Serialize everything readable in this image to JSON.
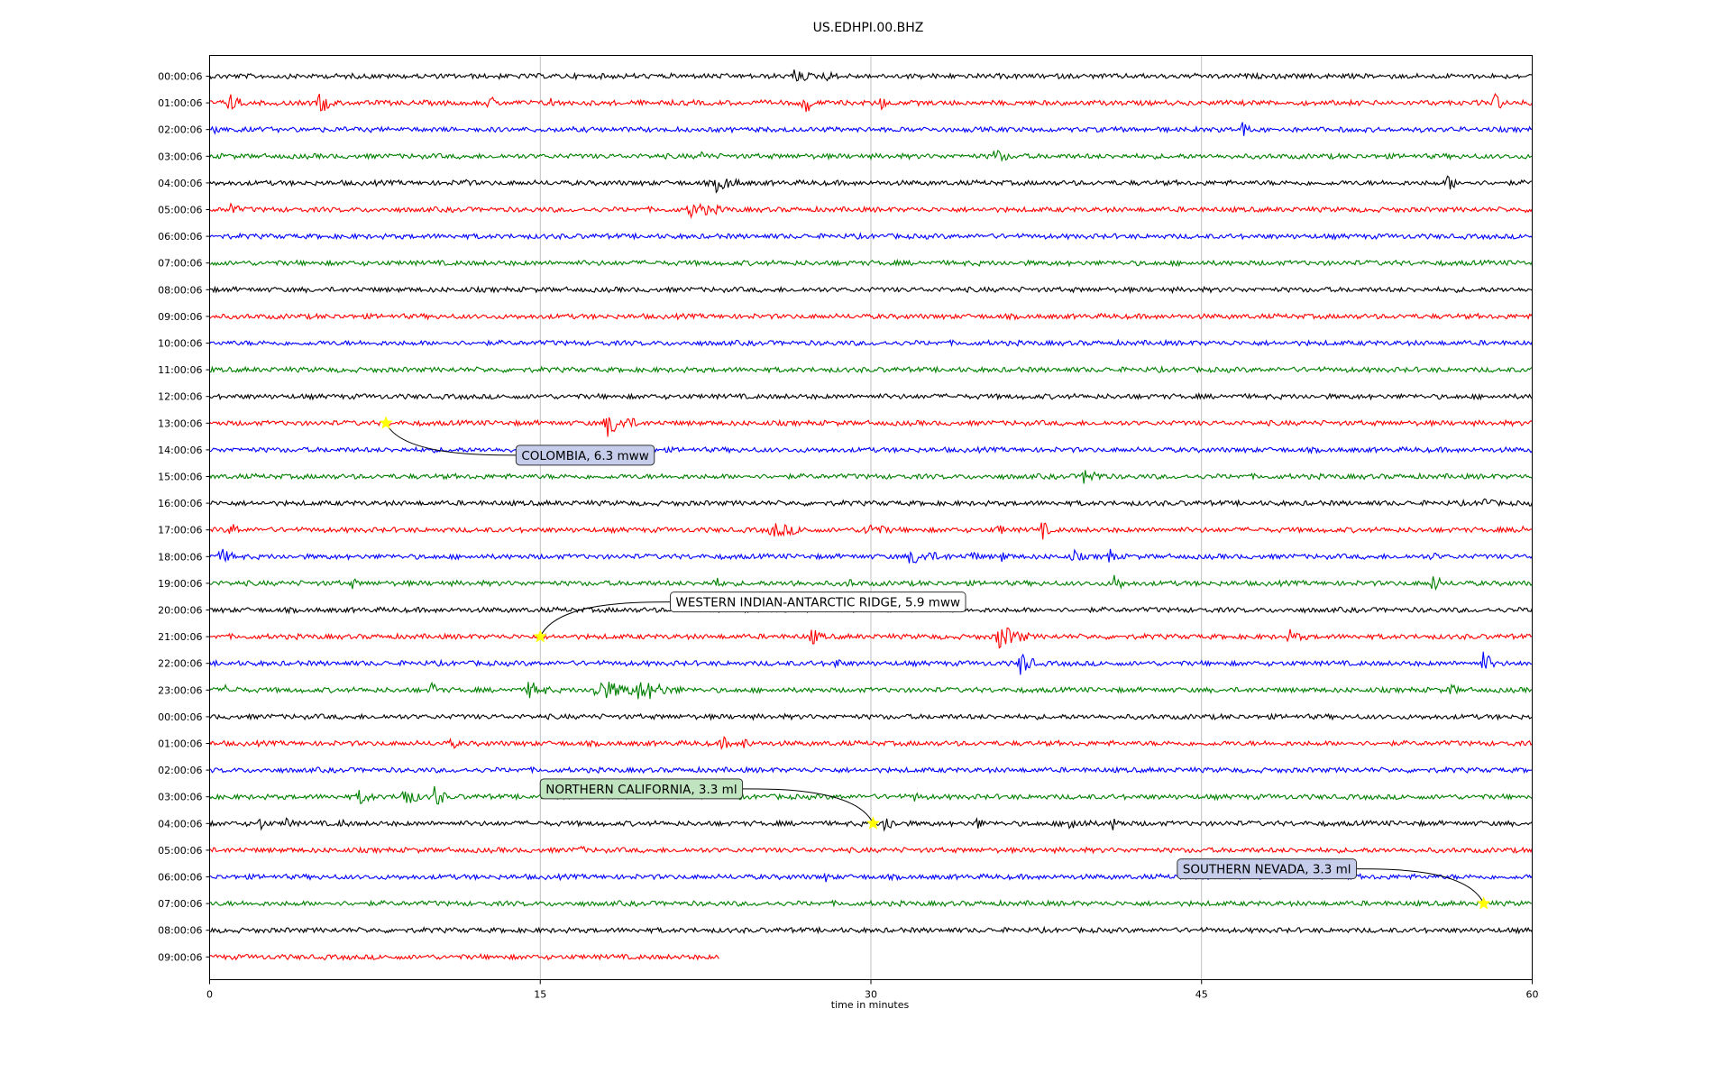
{
  "chart_data": {
    "type": "helicorder",
    "title": "US.EDHPI.00.BHZ",
    "xlabel": "time in minutes",
    "xlim": [
      0,
      60
    ],
    "x_ticks": [
      0,
      15,
      30,
      45,
      60
    ],
    "grid": "vertical lines at 15-minute ticks",
    "trace_colors": [
      "#000000",
      "#ff0000",
      "#0000ff",
      "#008000"
    ],
    "event_marker_color": "#ffff00",
    "annotation_box_colors": [
      "#c6cdea",
      "#ffffff",
      "#bfe4bf",
      "#c6cdea"
    ],
    "rows": [
      {
        "label": "00:00:06",
        "bursts": [
          {
            "t": 26.5,
            "a": 0.45,
            "d": 0.9
          },
          {
            "t": 27.9,
            "a": 0.3,
            "d": 0.7
          }
        ]
      },
      {
        "label": "01:00:06",
        "bursts": [
          {
            "t": 0.9,
            "a": 0.7,
            "d": 0.6
          },
          {
            "t": 5.0,
            "a": 0.8,
            "d": 0.7
          },
          {
            "t": 12.7,
            "a": 0.5,
            "d": 0.4
          },
          {
            "t": 15.5,
            "a": 0.4,
            "d": 0.3
          },
          {
            "t": 27.0,
            "a": 1.0,
            "d": 0.5
          },
          {
            "t": 30.5,
            "a": 0.5,
            "d": 0.3
          },
          {
            "t": 58.3,
            "a": 0.9,
            "d": 0.4
          }
        ]
      },
      {
        "label": "02:00:06",
        "bursts": [
          {
            "t": 0.2,
            "a": 0.8,
            "d": 0.4
          },
          {
            "t": 46.9,
            "a": 0.6,
            "d": 0.3
          }
        ]
      },
      {
        "label": "03:00:06",
        "bursts": [
          {
            "t": 22.4,
            "a": 0.4,
            "d": 0.3
          },
          {
            "t": 35.6,
            "a": 0.5,
            "d": 0.8
          }
        ]
      },
      {
        "label": "04:00:06",
        "bursts": [
          {
            "t": 11.5,
            "a": 0.3,
            "d": 0.3
          },
          {
            "t": 23.0,
            "a": 0.6,
            "d": 1.2
          },
          {
            "t": 56.2,
            "a": 0.6,
            "d": 0.5
          }
        ]
      },
      {
        "label": "05:00:06",
        "bursts": [
          {
            "t": 0.9,
            "a": 0.5,
            "d": 0.5
          },
          {
            "t": 21.8,
            "a": 0.5,
            "d": 1.8
          }
        ]
      },
      {
        "label": "06:00:06",
        "bursts": []
      },
      {
        "label": "07:00:06",
        "bursts": []
      },
      {
        "label": "08:00:06",
        "bursts": []
      },
      {
        "label": "09:00:06",
        "bursts": []
      },
      {
        "label": "10:00:06",
        "bursts": []
      },
      {
        "label": "11:00:06",
        "bursts": []
      },
      {
        "label": "12:00:06",
        "bursts": []
      },
      {
        "label": "13:00:06",
        "bursts": [
          {
            "t": 18.0,
            "a": 0.9,
            "d": 1.6
          }
        ]
      },
      {
        "label": "14:00:06",
        "bursts": []
      },
      {
        "label": "15:00:06",
        "bursts": [
          {
            "t": 39.7,
            "a": 0.6,
            "d": 1.0
          }
        ]
      },
      {
        "label": "16:00:06",
        "bursts": [
          {
            "t": 57.8,
            "a": 0.4,
            "d": 0.5
          }
        ]
      },
      {
        "label": "17:00:06",
        "bursts": [
          {
            "t": 1.0,
            "a": 0.5,
            "d": 0.5
          },
          {
            "t": 25.5,
            "a": 0.5,
            "d": 1.8
          },
          {
            "t": 29.8,
            "a": 0.5,
            "d": 1.2
          },
          {
            "t": 35.8,
            "a": 0.5,
            "d": 0.3
          },
          {
            "t": 37.8,
            "a": 0.6,
            "d": 0.4
          },
          {
            "t": 59.5,
            "a": 0.3,
            "d": 0.3
          }
        ]
      },
      {
        "label": "18:00:06",
        "bursts": [
          {
            "t": 0.5,
            "a": 0.5,
            "d": 0.8
          },
          {
            "t": 31.8,
            "a": 0.5,
            "d": 1.8
          },
          {
            "t": 34.5,
            "a": 0.4,
            "d": 0.5
          },
          {
            "t": 36.0,
            "a": 0.4,
            "d": 0.3
          },
          {
            "t": 39.2,
            "a": 0.4,
            "d": 0.5
          },
          {
            "t": 40.8,
            "a": 0.5,
            "d": 0.5
          },
          {
            "t": 55.5,
            "a": 0.3,
            "d": 0.3
          }
        ]
      },
      {
        "label": "19:00:06",
        "bursts": [
          {
            "t": 6.5,
            "a": 0.3,
            "d": 0.3
          },
          {
            "t": 22.9,
            "a": 0.5,
            "d": 0.4
          },
          {
            "t": 26.5,
            "a": 0.3,
            "d": 0.3
          },
          {
            "t": 29.0,
            "a": 0.3,
            "d": 0.3
          },
          {
            "t": 41.0,
            "a": 0.7,
            "d": 0.6
          },
          {
            "t": 55.5,
            "a": 0.7,
            "d": 0.5
          }
        ]
      },
      {
        "label": "20:00:06",
        "bursts": []
      },
      {
        "label": "21:00:06",
        "bursts": [
          {
            "t": 27.3,
            "a": 0.6,
            "d": 0.6
          },
          {
            "t": 35.8,
            "a": 1.0,
            "d": 1.4
          },
          {
            "t": 49.0,
            "a": 0.4,
            "d": 0.8
          }
        ]
      },
      {
        "label": "22:00:06",
        "bursts": [
          {
            "t": 28.4,
            "a": 0.5,
            "d": 0.3
          },
          {
            "t": 36.8,
            "a": 1.0,
            "d": 0.7
          },
          {
            "t": 57.8,
            "a": 0.9,
            "d": 0.6
          }
        ]
      },
      {
        "label": "23:00:06",
        "bursts": [
          {
            "t": 0.8,
            "a": 0.4,
            "d": 0.6
          },
          {
            "t": 10.1,
            "a": 0.6,
            "d": 0.4
          },
          {
            "t": 14.5,
            "a": 0.6,
            "d": 1.0
          },
          {
            "t": 17.5,
            "a": 0.7,
            "d": 3.0
          },
          {
            "t": 19.5,
            "a": 0.6,
            "d": 2.0
          },
          {
            "t": 56.3,
            "a": 0.4,
            "d": 0.5
          }
        ]
      },
      {
        "label": "00:00:06",
        "bursts": []
      },
      {
        "label": "01:00:06",
        "bursts": [
          {
            "t": 11.0,
            "a": 0.4,
            "d": 0.3
          },
          {
            "t": 23.3,
            "a": 0.5,
            "d": 0.4
          },
          {
            "t": 24.3,
            "a": 0.6,
            "d": 0.3
          }
        ]
      },
      {
        "label": "02:00:06",
        "bursts": []
      },
      {
        "label": "03:00:06",
        "bursts": [
          {
            "t": 6.8,
            "a": 0.5,
            "d": 0.8
          },
          {
            "t": 8.8,
            "a": 0.8,
            "d": 0.8
          },
          {
            "t": 10.2,
            "a": 0.9,
            "d": 0.6
          },
          {
            "t": 32.0,
            "a": 0.3,
            "d": 0.3
          }
        ]
      },
      {
        "label": "04:00:06",
        "bursts": [
          {
            "t": 2.3,
            "a": 0.4,
            "d": 0.4
          },
          {
            "t": 3.5,
            "a": 0.5,
            "d": 0.3
          },
          {
            "t": 6.0,
            "a": 0.3,
            "d": 0.3
          },
          {
            "t": 30.6,
            "a": 0.6,
            "d": 0.8
          },
          {
            "t": 34.8,
            "a": 0.4,
            "d": 0.4
          },
          {
            "t": 39.0,
            "a": 0.5,
            "d": 1.0
          },
          {
            "t": 41.0,
            "a": 0.4,
            "d": 0.5
          }
        ]
      },
      {
        "label": "05:00:06",
        "bursts": [
          {
            "t": 16.8,
            "a": 0.3,
            "d": 0.3
          }
        ]
      },
      {
        "label": "06:00:06",
        "bursts": [
          {
            "t": 28.0,
            "a": 0.3,
            "d": 0.2
          }
        ]
      },
      {
        "label": "07:00:06",
        "bursts": []
      },
      {
        "label": "08:00:06",
        "bursts": []
      },
      {
        "label": "09:00:06",
        "bursts": [],
        "end_minute": 23.1
      }
    ],
    "annotations": [
      {
        "text": "COLOMBIA, 6.3 mww",
        "row": 13,
        "minute": 8.0,
        "text_row": 14.2,
        "text_minute": 13.9
      },
      {
        "text": "WESTERN INDIAN-ANTARCTIC RIDGE, 5.9 mww",
        "row": 21,
        "minute": 15.0,
        "text_row": 19.7,
        "text_minute": 20.9
      },
      {
        "text": "NORTHERN CALIFORNIA, 3.3 ml",
        "row": 28,
        "minute": 30.1,
        "text_row": 26.7,
        "text_minute": 15.0
      },
      {
        "text": "SOUTHERN NEVADA, 3.3 ml",
        "row": 31,
        "minute": 57.8,
        "text_row": 29.7,
        "text_minute": 43.9
      }
    ]
  }
}
